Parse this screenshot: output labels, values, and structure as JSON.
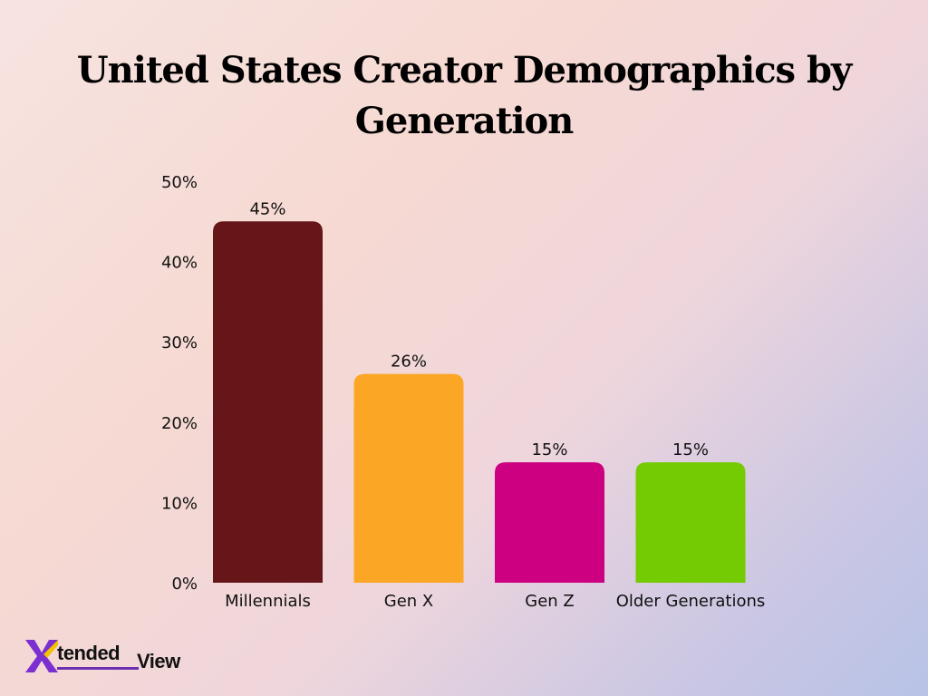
{
  "chart_data": {
    "type": "bar",
    "title": "United States Creator Demographics by Generation",
    "categories": [
      "Millennials",
      "Gen X",
      "Gen Z",
      "Older Generations"
    ],
    "values": [
      45,
      26,
      15,
      15
    ],
    "value_labels": [
      "45%",
      "26%",
      "15%",
      "15%"
    ],
    "colors": [
      "#661518",
      "#fca625",
      "#cc0080",
      "#74cb01"
    ],
    "ylim": [
      0,
      50
    ],
    "yticks": [
      0,
      10,
      20,
      30,
      40,
      50
    ],
    "ytick_labels": [
      "0%",
      "10%",
      "20%",
      "30%",
      "40%",
      "50%"
    ],
    "xlabel": "",
    "ylabel": "",
    "grid": false,
    "legend": "none"
  },
  "logo": {
    "mark": "X",
    "text_part1": "tended",
    "text_part2": "View",
    "accent_color": "#7b2fd0"
  }
}
